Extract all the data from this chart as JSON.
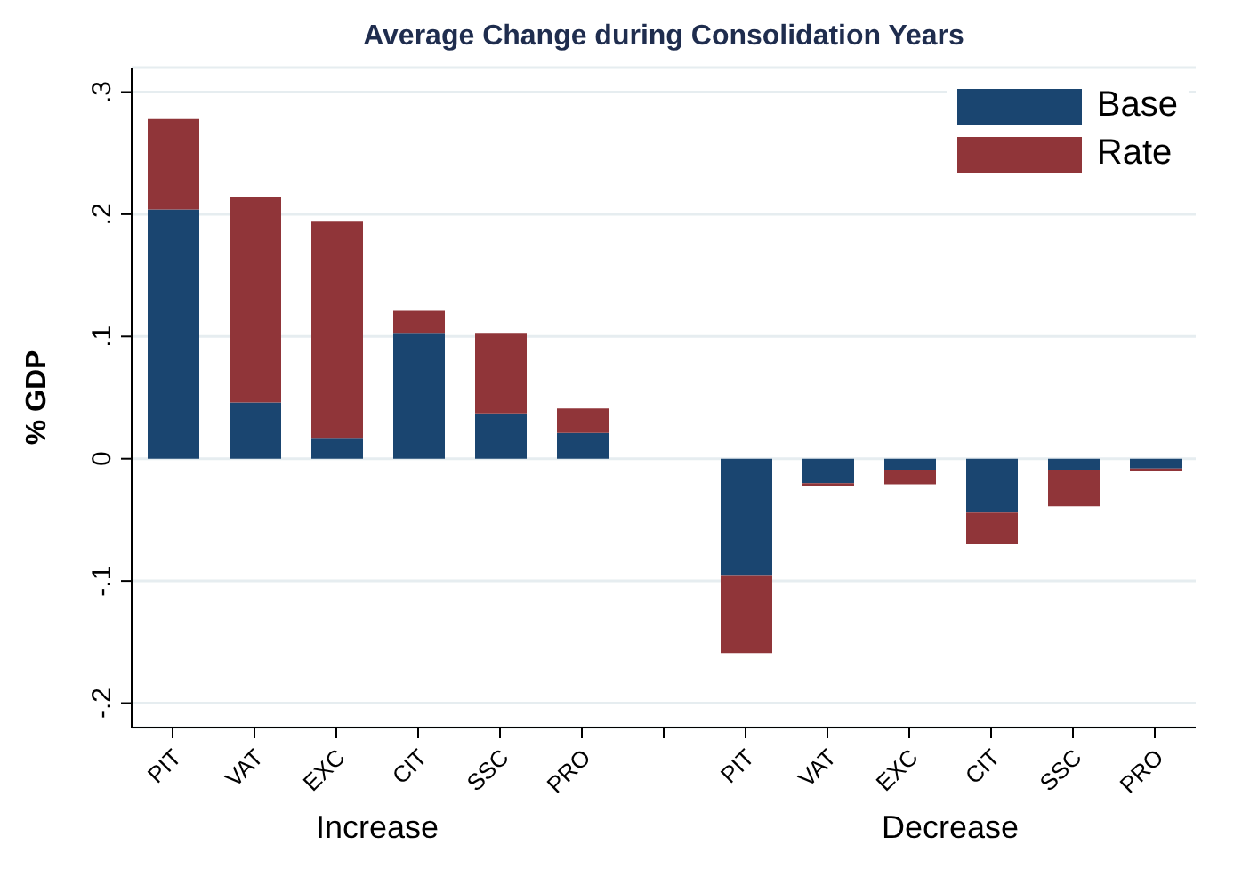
{
  "chart_data": {
    "type": "bar",
    "title": "Average Change during Consolidation Years",
    "ylabel": "% GDP",
    "stacked": true,
    "categories": [
      "PIT",
      "VAT",
      "EXC",
      "CIT",
      "SSC",
      "PRO",
      null,
      "PIT",
      "VAT",
      "EXC",
      "CIT",
      "SSC",
      "PRO"
    ],
    "series": [
      {
        "name": "Base",
        "color": "#1a4570",
        "values": [
          0.204,
          0.046,
          0.017,
          0.103,
          0.037,
          0.021,
          null,
          -0.096,
          -0.02,
          -0.009,
          -0.044,
          -0.009,
          -0.008
        ]
      },
      {
        "name": "Rate",
        "color": "#903539",
        "values": [
          0.074,
          0.168,
          0.177,
          0.018,
          0.066,
          0.02,
          null,
          -0.063,
          -0.002,
          -0.012,
          -0.026,
          -0.03,
          -0.002
        ]
      }
    ],
    "ylim": [
      -0.22,
      0.32
    ],
    "yticks": [
      {
        "value": -0.2,
        "label": "-.2"
      },
      {
        "value": -0.1,
        "label": "-.1"
      },
      {
        "value": 0,
        "label": "0"
      },
      {
        "value": 0.1,
        "label": ".1"
      },
      {
        "value": 0.2,
        "label": ".2"
      },
      {
        "value": 0.3,
        "label": ".3"
      }
    ],
    "grid": "y",
    "legend": "top right",
    "annotations": [
      "Increase",
      "Decrease"
    ]
  }
}
